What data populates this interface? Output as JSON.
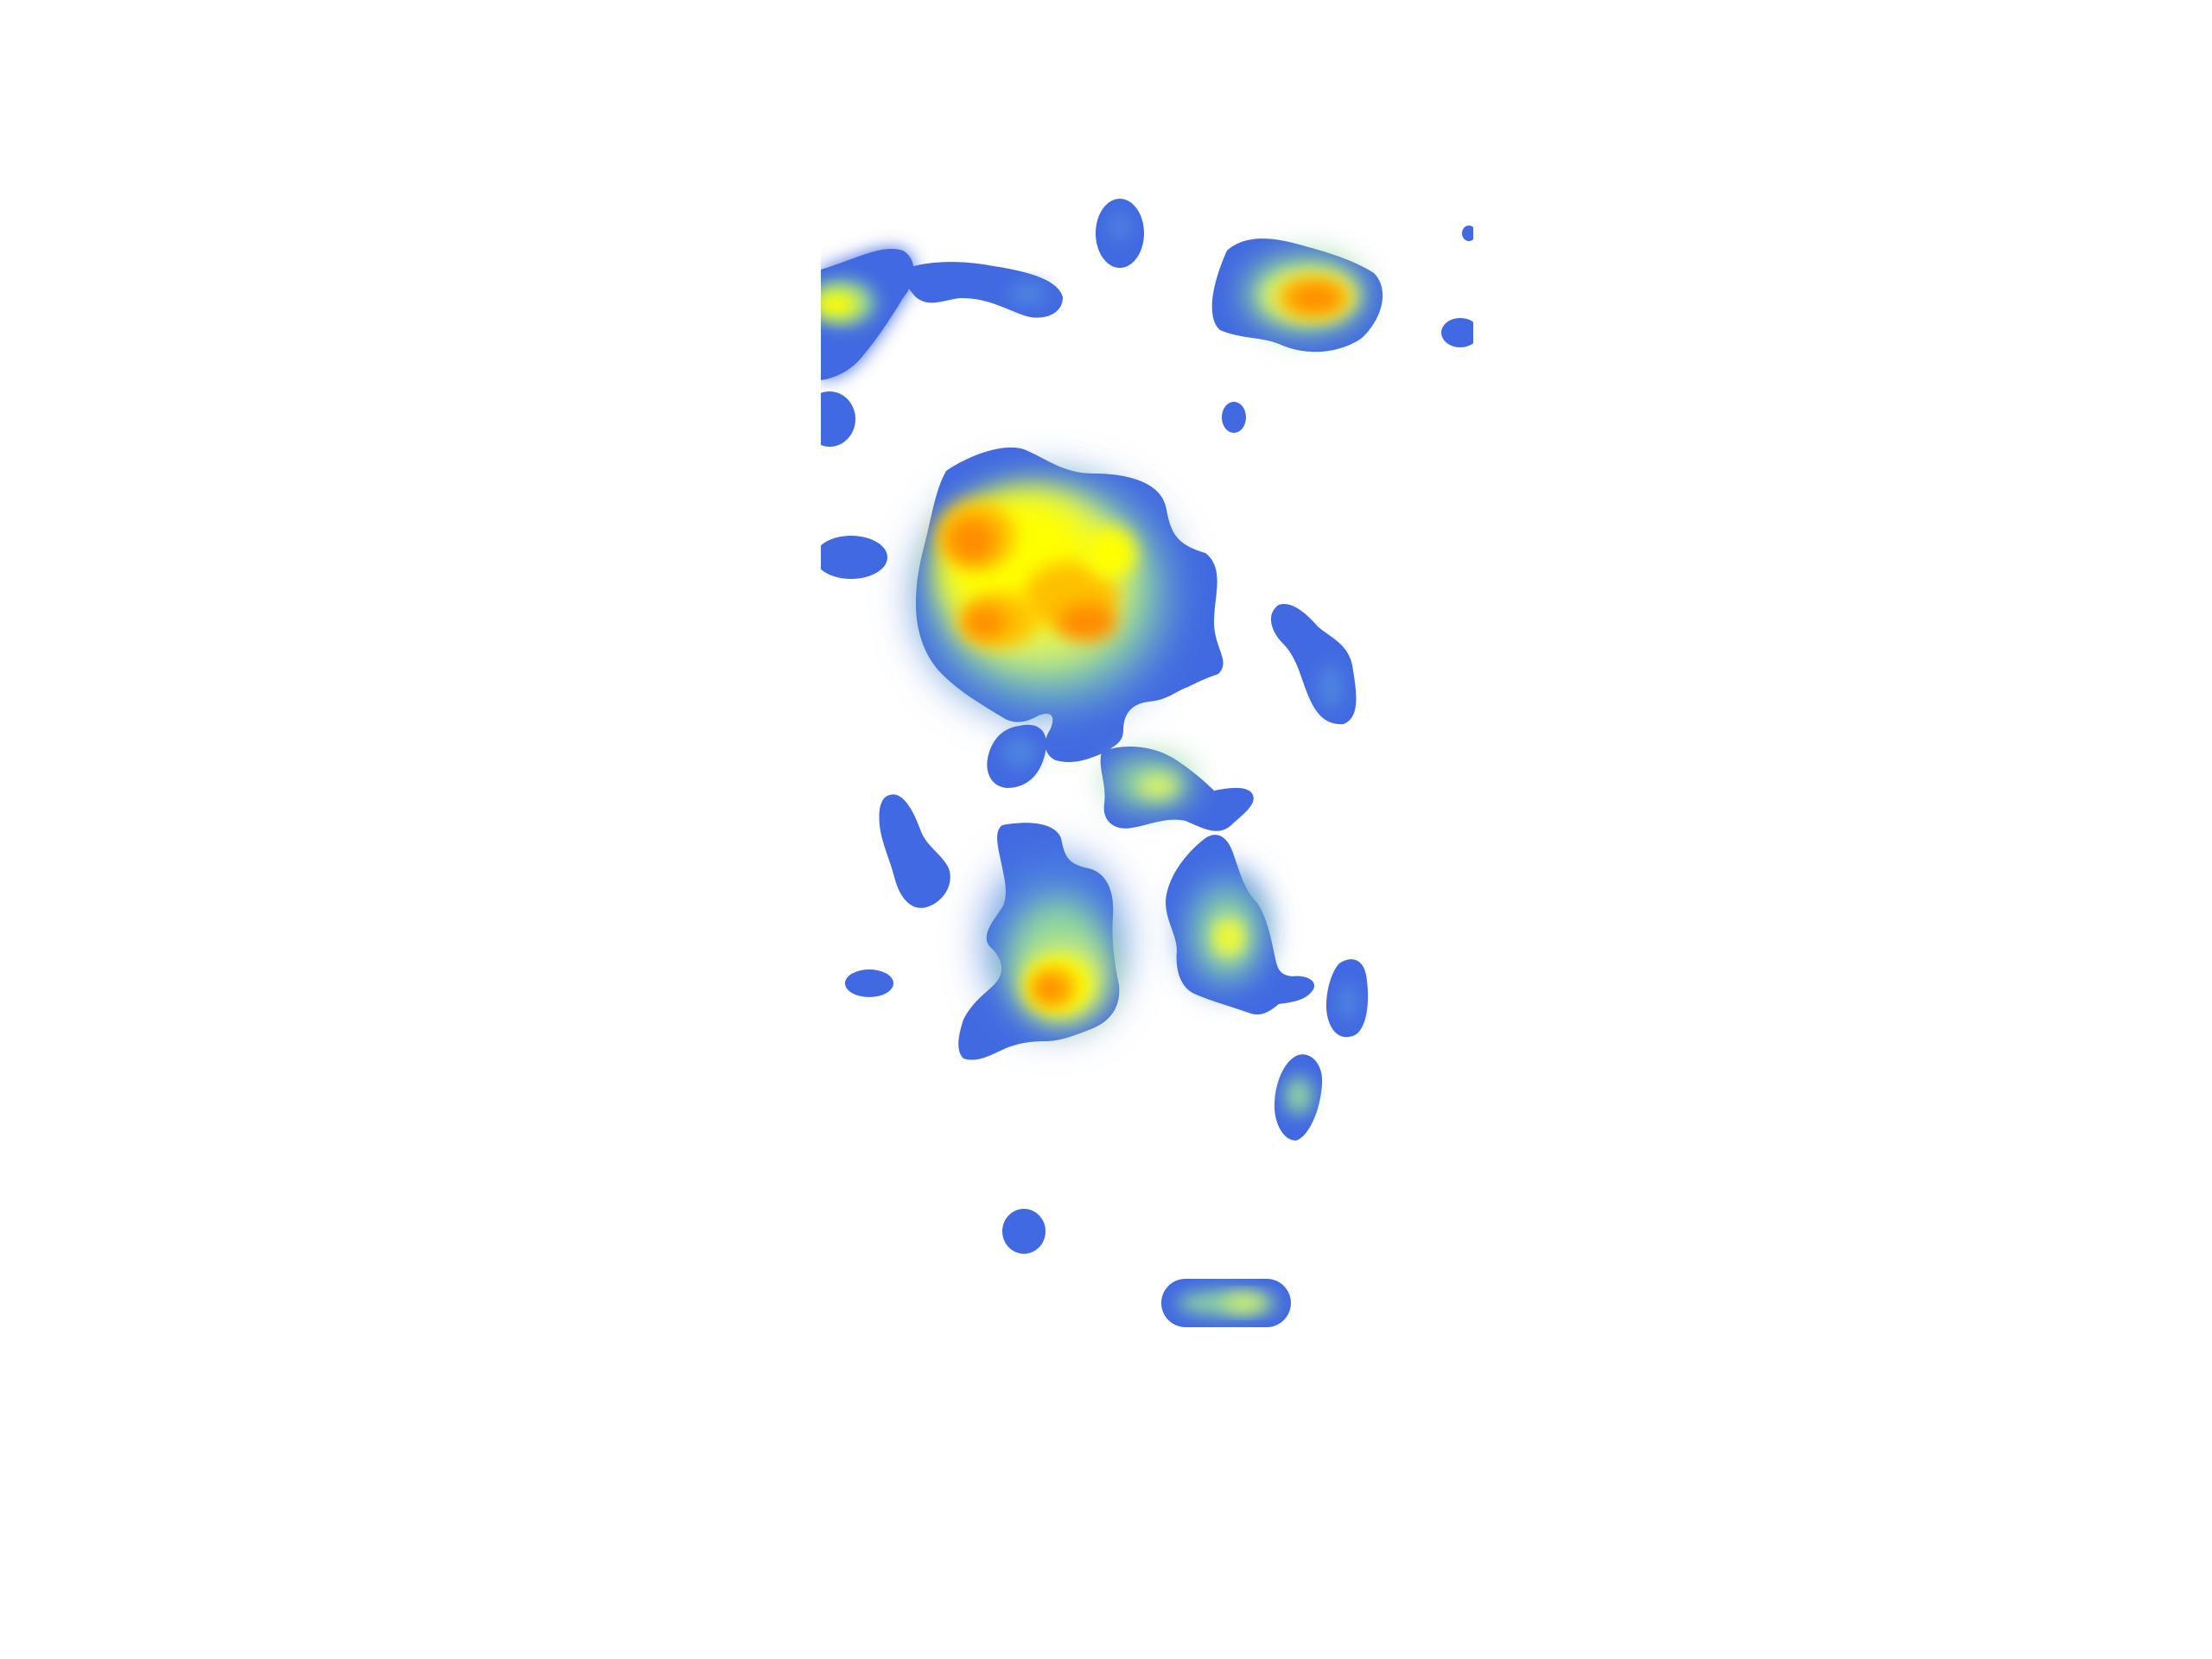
{
  "heatmap": {
    "colors": {
      "background": "#ffffff",
      "stops": [
        "#4169e1",
        "#4f86e0",
        "#8fd6a0",
        "#d9f26a",
        "#ffff00",
        "#ffc000",
        "#ff8c00",
        "#ff5a00"
      ]
    },
    "hotspots": [
      {
        "id": "main-cluster",
        "intensity": 1.0
      },
      {
        "id": "lower-left-cluster",
        "intensity": 0.9
      },
      {
        "id": "top-right-cluster",
        "intensity": 0.85
      },
      {
        "id": "top-left-cluster",
        "intensity": 0.7
      },
      {
        "id": "right-streak-cluster",
        "intensity": 0.6
      },
      {
        "id": "bottom-pill",
        "intensity": 0.45
      },
      {
        "id": "small-oval-right",
        "intensity": 0.35
      }
    ]
  }
}
